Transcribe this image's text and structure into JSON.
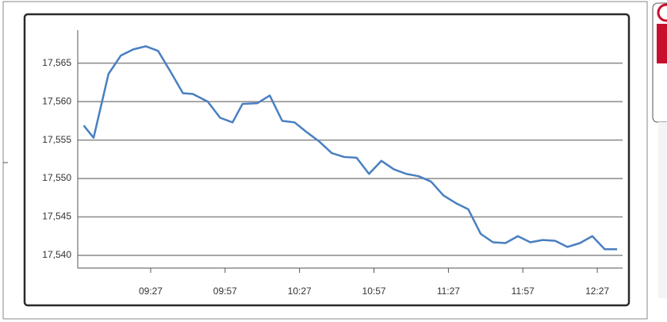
{
  "chart_data": {
    "type": "line",
    "x": [
      540,
      544,
      550,
      555,
      560,
      565,
      570,
      575,
      580,
      584,
      590,
      595,
      600,
      604,
      610,
      615,
      620,
      625,
      630,
      635,
      640,
      645,
      650,
      655,
      660,
      665,
      670,
      675,
      680,
      685,
      690,
      695,
      700,
      705,
      710,
      715,
      720,
      725,
      730,
      735,
      740,
      745,
      750,
      755
    ],
    "values": [
      17556.9,
      17555.3,
      17563.6,
      17566.0,
      17566.8,
      17567.2,
      17566.6,
      17563.9,
      17561.1,
      17561.0,
      17560.0,
      17557.9,
      17557.3,
      17559.7,
      17559.8,
      17560.8,
      17557.5,
      17557.3,
      17556.0,
      17554.8,
      17553.3,
      17552.8,
      17552.7,
      17550.6,
      17552.3,
      17551.2,
      17550.6,
      17550.3,
      17549.6,
      17547.8,
      17546.8,
      17546.0,
      17542.8,
      17541.7,
      17541.6,
      17542.5,
      17541.7,
      17542.0,
      17541.9,
      17541.1,
      17541.6,
      17542.5,
      17540.8,
      17540.8
    ],
    "color": "#4a7fc1",
    "xlim": [
      537.6,
      757.2
    ],
    "xticks": [
      {
        "value": 567,
        "label": "09:27"
      },
      {
        "value": 597,
        "label": "09:57"
      },
      {
        "value": 627,
        "label": "10:27"
      },
      {
        "value": 657,
        "label": "10:57"
      },
      {
        "value": 687,
        "label": "11:27"
      },
      {
        "value": 717,
        "label": "11:57"
      },
      {
        "value": 747,
        "label": "12:27"
      }
    ],
    "ylim": [
      17538.35,
      17569.3
    ],
    "yticks": [
      {
        "value": 17540,
        "label": "17,540"
      },
      {
        "value": 17545,
        "label": "17,545"
      },
      {
        "value": 17550,
        "label": "17,550"
      },
      {
        "value": 17555,
        "label": "17,555"
      },
      {
        "value": 17560,
        "label": "17,560"
      },
      {
        "value": 17565,
        "label": "17,565"
      }
    ],
    "grid": true
  }
}
